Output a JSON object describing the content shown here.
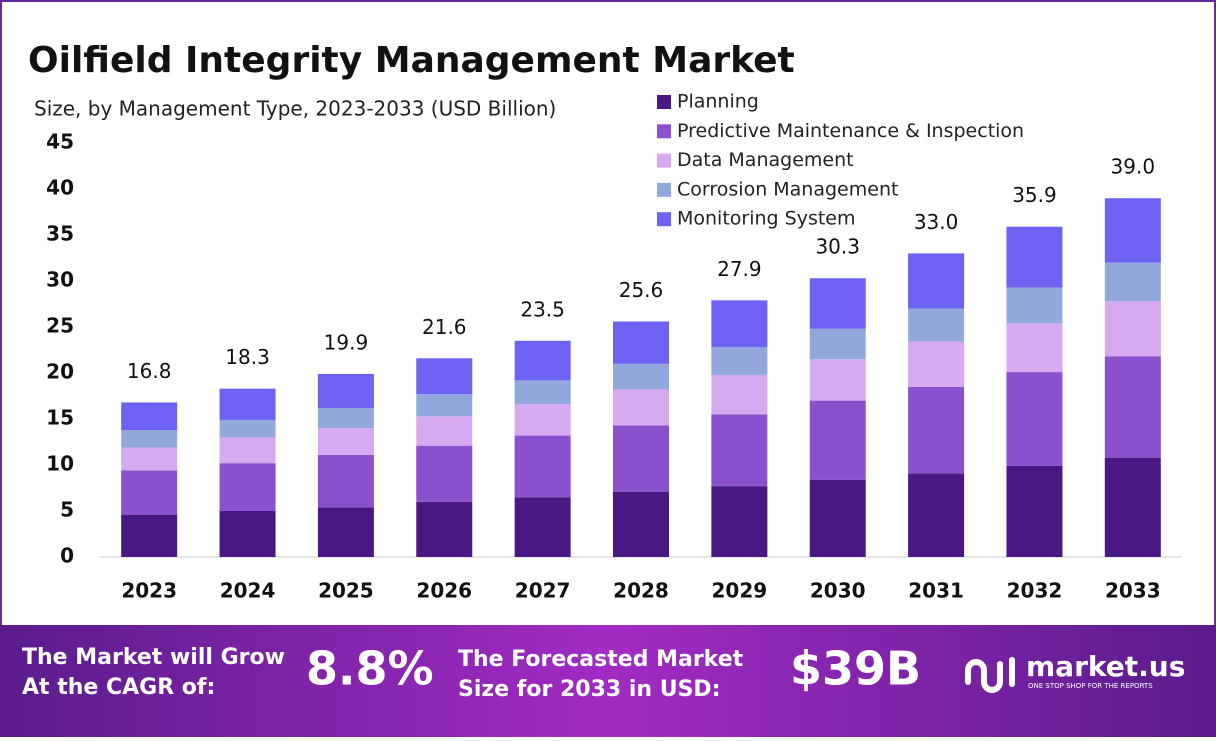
{
  "chart_data": {
    "type": "stacked_bar",
    "title": "Oilfield Integrity Management Market",
    "subtitle": "Size, by Management Type, 2023-2033 (USD Billion)",
    "categories": [
      "2023",
      "2024",
      "2025",
      "2026",
      "2027",
      "2028",
      "2029",
      "2030",
      "2031",
      "2032",
      "2033"
    ],
    "series": [
      {
        "name": "Planning",
        "color": "#4a1882",
        "values": [
          4.6,
          5.0,
          5.4,
          6.0,
          6.5,
          7.1,
          7.7,
          8.4,
          9.1,
          9.9,
          10.8
        ]
      },
      {
        "name": "Predictive Maintenance & Inspection",
        "color": "#8b50cd",
        "values": [
          4.8,
          5.2,
          5.7,
          6.1,
          6.7,
          7.2,
          7.8,
          8.6,
          9.4,
          10.2,
          11.0
        ]
      },
      {
        "name": "Data Management",
        "color": "#d5aaf0",
        "values": [
          2.5,
          2.8,
          2.9,
          3.2,
          3.4,
          3.9,
          4.3,
          4.5,
          4.9,
          5.3,
          6.0
        ]
      },
      {
        "name": "Corrosion Management",
        "color": "#92a8dc",
        "values": [
          1.9,
          1.9,
          2.2,
          2.4,
          2.6,
          2.8,
          3.0,
          3.3,
          3.6,
          3.9,
          4.2
        ]
      },
      {
        "name": "Monitoring System",
        "color": "#6e62f2",
        "values": [
          3.0,
          3.4,
          3.7,
          3.9,
          4.3,
          4.6,
          5.1,
          5.5,
          6.0,
          6.6,
          7.0
        ]
      }
    ],
    "totals": {
      "values": [
        16.8,
        18.3,
        19.9,
        21.6,
        23.5,
        25.6,
        27.9,
        30.3,
        33.0,
        35.9,
        39.0
      ],
      "value_labels": [
        "16.8",
        "18.3",
        "19.9",
        "21.6",
        "23.5",
        "25.6",
        "27.9",
        "30.3",
        "33.0",
        "35.9",
        "39.0"
      ]
    },
    "ylim": [
      0,
      45
    ],
    "yticks": [
      0,
      5,
      10,
      15,
      20,
      25,
      30,
      35,
      40,
      45
    ],
    "grid": false,
    "legend": "top-right"
  },
  "footer": {
    "cagr_text_1": "The Market will Grow",
    "cagr_text_2": "At the CAGR of:",
    "cagr": "8.8%",
    "forecast_text_1": "The Forecasted Market",
    "forecast_text_2": "Size for 2033 in USD:",
    "forecast": "$39B",
    "brand": "market.us",
    "tagline": "ONE STOP SHOP FOR THE REPORTS"
  }
}
